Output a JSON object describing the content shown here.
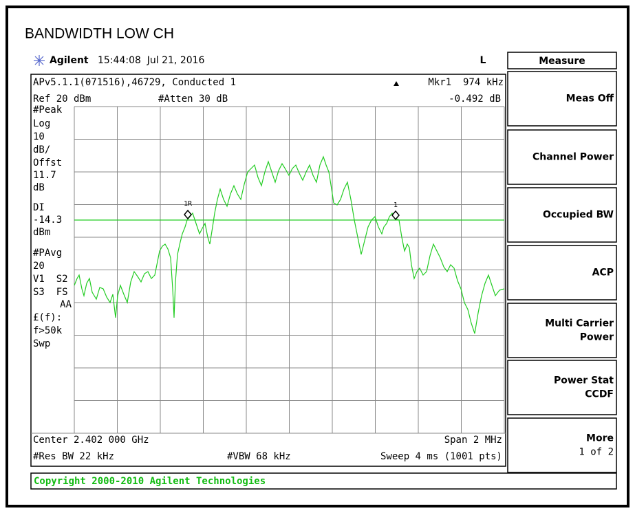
{
  "header": {
    "title": "BANDWIDTH LOW CH",
    "brand": "Agilent",
    "timestamp": "15:44:08  Jul 21, 2016",
    "mode": "L"
  },
  "screen": {
    "line1_left": "APv5.1.1(071516),46729, Conducted 1",
    "line1_right": "Mkr1  974 kHz",
    "line2_left": "Ref 20 dBm",
    "line2_mid": "#Atten 30 dB",
    "line2_right": "-0.492 dB",
    "left_labels": [
      "#Peak",
      "Log",
      "10",
      "dB/",
      "Offst",
      "11.7",
      "dB",
      "DI",
      "-14.3",
      "dBm",
      "#PAvg",
      "20",
      "V1  S2",
      "S3  FS",
      "AA",
      "£(f):",
      "f>50k",
      "Swp"
    ],
    "marker_ref": "1R",
    "marker_delta": "1",
    "bottom1_left": "Center 2.402 000 GHz",
    "bottom1_right": "Span 2 MHz",
    "bottom2_left": "#Res BW 22 kHz",
    "bottom2_mid": "#VBW 68 kHz",
    "bottom2_right": "Sweep 4 ms (1001 pts)"
  },
  "menu": {
    "title": "Measure",
    "softkeys": [
      [
        "Meas Off"
      ],
      [
        "Channel Power"
      ],
      [
        "Occupied BW"
      ],
      [
        "ACP"
      ],
      [
        "Multi Carrier",
        "Power"
      ],
      [
        "Power Stat",
        "CCDF"
      ],
      [
        "More",
        "1 of 2"
      ]
    ]
  },
  "status": {
    "copyright": "Copyright 2000-2010 Agilent Technologies"
  }
}
